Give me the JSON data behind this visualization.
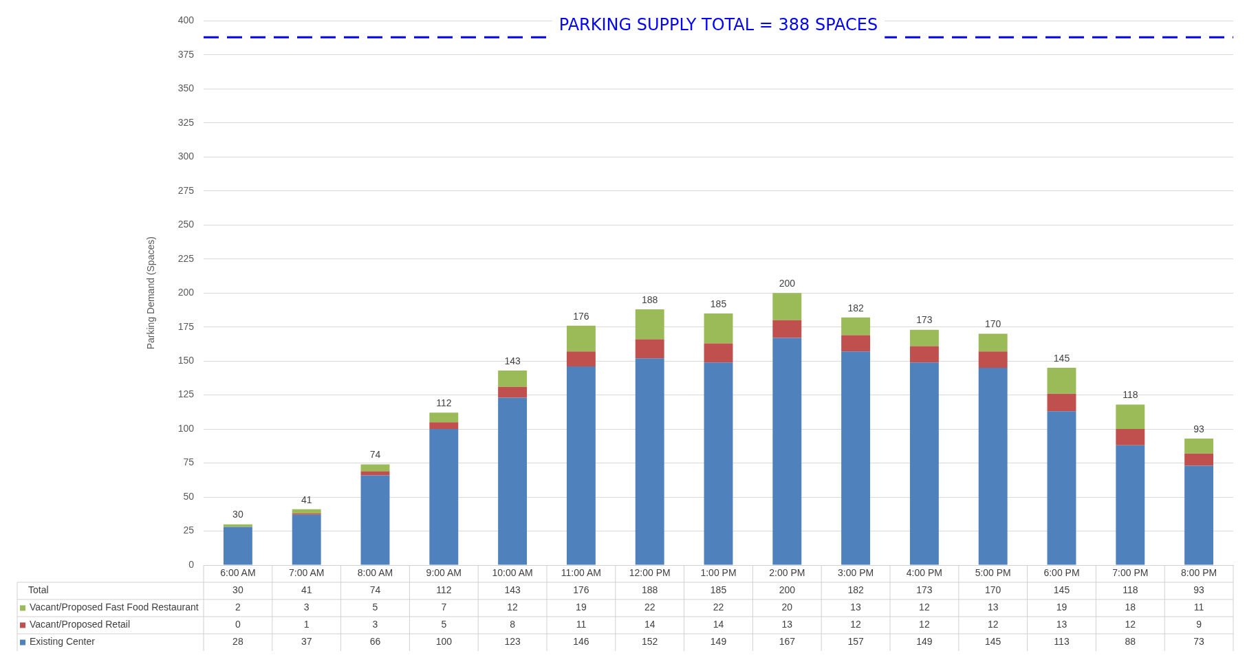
{
  "chart_data": {
    "type": "bar",
    "stacked": true,
    "ylabel": "Parking Demand (Spaces)",
    "categories": [
      "6:00 AM",
      "7:00 AM",
      "8:00 AM",
      "9:00 AM",
      "10:00 AM",
      "11:00 AM",
      "12:00 PM",
      "1:00 PM",
      "2:00 PM",
      "3:00 PM",
      "4:00 PM",
      "5:00 PM",
      "6:00 PM",
      "7:00 PM",
      "8:00 PM"
    ],
    "series": [
      {
        "name": "Existing Center",
        "color": "#4f81bd",
        "values": [
          28,
          37,
          66,
          100,
          123,
          146,
          152,
          149,
          167,
          157,
          149,
          145,
          113,
          88,
          73
        ]
      },
      {
        "name": "Vacant/Proposed Retail",
        "color": "#c0504d",
        "values": [
          0,
          1,
          3,
          5,
          8,
          11,
          14,
          14,
          13,
          12,
          12,
          12,
          13,
          12,
          9
        ]
      },
      {
        "name": "Vacant/Proposed Fast Food Restaurant",
        "color": "#9bbb59",
        "values": [
          2,
          3,
          5,
          7,
          12,
          19,
          22,
          22,
          20,
          13,
          12,
          13,
          19,
          18,
          11
        ]
      }
    ],
    "totals": [
      "30",
      "41",
      "74",
      "112",
      "143",
      "176",
      "188",
      "185",
      "200",
      "182",
      "173",
      "170",
      "145",
      "118",
      "93"
    ],
    "annotations": [
      "Total"
    ],
    "ylim": [
      0,
      400
    ],
    "yticks": [
      0,
      25,
      50,
      75,
      100,
      125,
      150,
      175,
      200,
      225,
      250,
      275,
      300,
      325,
      350,
      375,
      400
    ],
    "grid": "y",
    "legend": "bottom",
    "data_labels": true,
    "ref_lines": [
      {
        "axis": "y",
        "value": 388,
        "label": "PARKING SUPPLY TOTAL = 388 SPACES",
        "color": "#0000ff",
        "line_style": "dashed"
      }
    ]
  }
}
